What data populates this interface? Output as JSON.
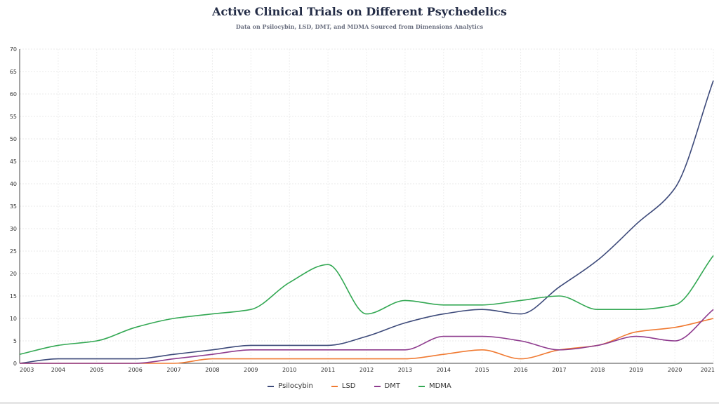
{
  "chart_data": {
    "type": "line",
    "title": "Active Clinical Trials on Different Psychedelics",
    "subtitle": "Data on Psilocybin, LSD, DMT, and MDMA Sourced from Dimensions Analytics",
    "xlabel": "",
    "ylabel": "",
    "x": [
      2003,
      2004,
      2005,
      2006,
      2007,
      2008,
      2009,
      2010,
      2011,
      2012,
      2013,
      2014,
      2015,
      2016,
      2017,
      2018,
      2019,
      2020,
      2021
    ],
    "xlim": [
      2003,
      2021
    ],
    "ylim": [
      0,
      70
    ],
    "yticks": [
      0,
      5,
      10,
      15,
      20,
      25,
      30,
      35,
      40,
      45,
      50,
      55,
      60,
      65,
      70
    ],
    "grid": true,
    "legend_position": "bottom-center",
    "series": [
      {
        "name": "Psilocybin",
        "color": "#3d4a7a",
        "values": [
          0,
          1,
          1,
          1,
          2,
          3,
          4,
          4,
          4,
          6,
          9,
          11,
          12,
          11,
          17,
          23,
          31,
          39,
          63
        ]
      },
      {
        "name": "LSD",
        "color": "#f07a32",
        "values": [
          0,
          0,
          0,
          0,
          0,
          1,
          1,
          1,
          1,
          1,
          1,
          2,
          3,
          1,
          3,
          4,
          7,
          8,
          10
        ]
      },
      {
        "name": "DMT",
        "color": "#8e3b8e",
        "values": [
          0,
          0,
          0,
          0,
          1,
          2,
          3,
          3,
          3,
          3,
          3,
          6,
          6,
          5,
          3,
          4,
          6,
          5,
          12
        ]
      },
      {
        "name": "MDMA",
        "color": "#33a853",
        "values": [
          2,
          4,
          5,
          8,
          10,
          11,
          12,
          18,
          22,
          11,
          14,
          13,
          13,
          14,
          15,
          12,
          12,
          13,
          24
        ]
      }
    ]
  }
}
